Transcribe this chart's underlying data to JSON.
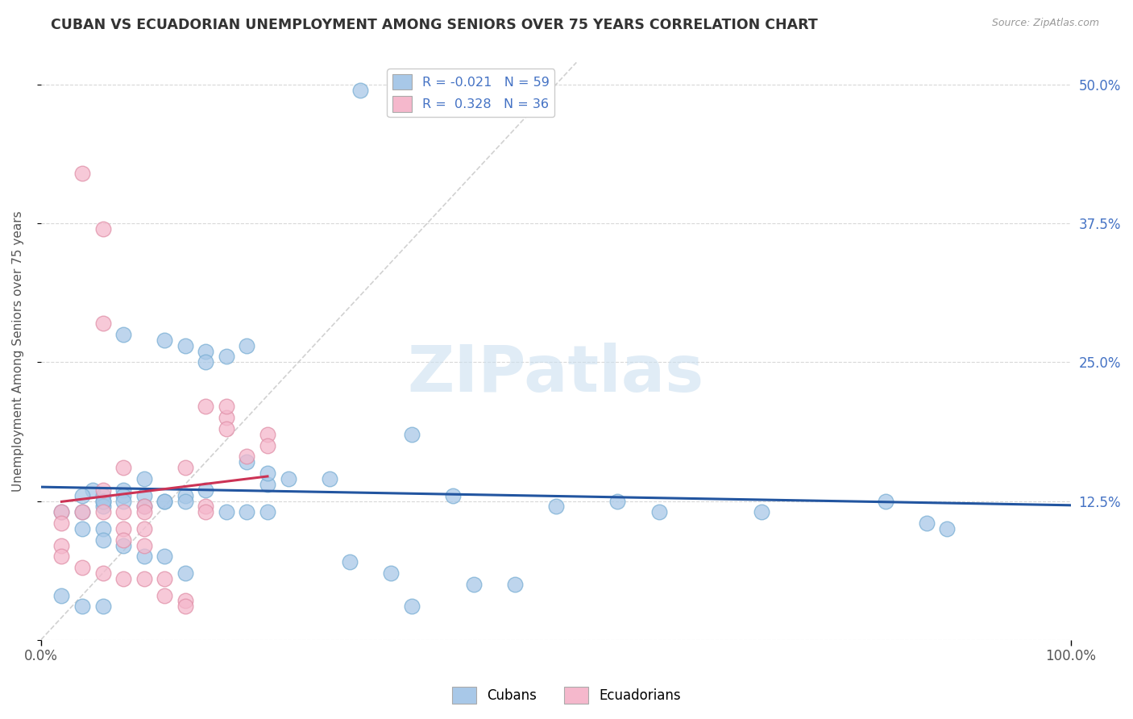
{
  "title": "CUBAN VS ECUADORIAN UNEMPLOYMENT AMONG SENIORS OVER 75 YEARS CORRELATION CHART",
  "source": "Source: ZipAtlas.com",
  "ylabel": "Unemployment Among Seniors over 75 years",
  "xlim": [
    0.0,
    1.0
  ],
  "ylim": [
    0.0,
    0.52
  ],
  "xticklabels": [
    "0.0%",
    "100.0%"
  ],
  "ytick_positions": [
    0.0,
    0.125,
    0.25,
    0.375,
    0.5
  ],
  "ytick_labels": [
    "",
    "12.5%",
    "25.0%",
    "37.5%",
    "50.0%"
  ],
  "watermark": "ZIPatlas",
  "legend_cubans_R": "-0.021",
  "legend_cubans_N": "59",
  "legend_ecuadorians_R": "0.328",
  "legend_ecuadorians_N": "36",
  "color_cubans": "#a8c8e8",
  "color_cubans_edge": "#7aafd4",
  "color_cubans_line": "#2255a0",
  "color_ecuadorians": "#f5b8cc",
  "color_ecuadorians_edge": "#e090a8",
  "color_ecuadorians_line": "#cc3355",
  "color_diagonal": "#cccccc",
  "cubans_x": [
    0.31,
    0.05,
    0.08,
    0.12,
    0.14,
    0.16,
    0.16,
    0.18,
    0.2,
    0.22,
    0.1,
    0.08,
    0.06,
    0.04,
    0.06,
    0.06,
    0.08,
    0.1,
    0.12,
    0.06,
    0.08,
    0.04,
    0.02,
    0.04,
    0.06,
    0.14,
    0.14,
    0.12,
    0.1,
    0.2,
    0.22,
    0.16,
    0.24,
    0.28,
    0.36,
    0.4,
    0.5,
    0.56,
    0.6,
    0.7,
    0.82,
    0.86,
    0.88,
    0.06,
    0.08,
    0.1,
    0.12,
    0.14,
    0.02,
    0.04,
    0.06,
    0.3,
    0.34,
    0.36,
    0.18,
    0.2,
    0.22,
    0.42,
    0.46
  ],
  "cubans_y": [
    0.495,
    0.135,
    0.275,
    0.27,
    0.265,
    0.26,
    0.25,
    0.255,
    0.265,
    0.14,
    0.145,
    0.135,
    0.13,
    0.13,
    0.125,
    0.12,
    0.13,
    0.13,
    0.125,
    0.125,
    0.125,
    0.115,
    0.115,
    0.1,
    0.1,
    0.13,
    0.125,
    0.125,
    0.12,
    0.16,
    0.15,
    0.135,
    0.145,
    0.145,
    0.185,
    0.13,
    0.12,
    0.125,
    0.115,
    0.115,
    0.125,
    0.105,
    0.1,
    0.09,
    0.085,
    0.075,
    0.075,
    0.06,
    0.04,
    0.03,
    0.03,
    0.07,
    0.06,
    0.03,
    0.115,
    0.115,
    0.115,
    0.05,
    0.05
  ],
  "ecuadorians_x": [
    0.04,
    0.04,
    0.06,
    0.06,
    0.06,
    0.08,
    0.08,
    0.08,
    0.1,
    0.1,
    0.1,
    0.1,
    0.02,
    0.02,
    0.02,
    0.02,
    0.04,
    0.06,
    0.08,
    0.1,
    0.12,
    0.12,
    0.14,
    0.14,
    0.16,
    0.16,
    0.18,
    0.18,
    0.06,
    0.08,
    0.14,
    0.2,
    0.22,
    0.22,
    0.16,
    0.18
  ],
  "ecuadorians_y": [
    0.42,
    0.115,
    0.37,
    0.285,
    0.115,
    0.115,
    0.1,
    0.09,
    0.12,
    0.115,
    0.1,
    0.085,
    0.115,
    0.105,
    0.085,
    0.075,
    0.065,
    0.06,
    0.055,
    0.055,
    0.055,
    0.04,
    0.035,
    0.03,
    0.12,
    0.115,
    0.2,
    0.19,
    0.135,
    0.155,
    0.155,
    0.165,
    0.185,
    0.175,
    0.21,
    0.21
  ],
  "background_color": "#ffffff",
  "plot_bg_color": "#ffffff",
  "grid_color": "#d8d8d8",
  "title_color": "#333333",
  "axis_label_color": "#555555",
  "tick_label_color_right": "#4472c4",
  "tick_label_color_bottom": "#555555",
  "watermark_color": "#cce0f0",
  "watermark_alpha": 0.6
}
